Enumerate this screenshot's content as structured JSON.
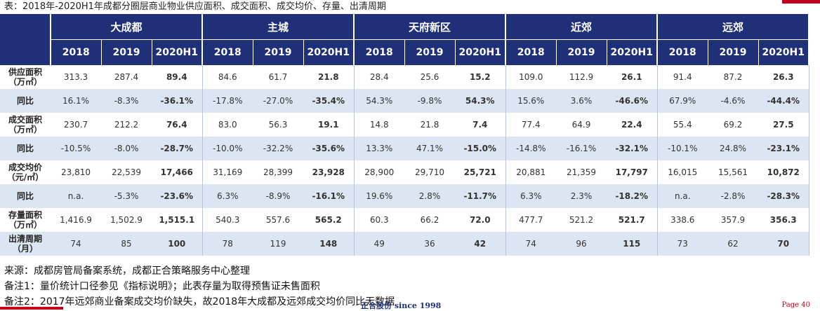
{
  "caption": "表：2018年-2020H1年成都分圈层商业物业供应面积、成交面积、成交均价、存量、出清周期",
  "regions": [
    "大成都",
    "主城",
    "天府新区",
    "近郊",
    "远郊"
  ],
  "years": [
    "2018",
    "2019",
    "2020H1"
  ],
  "rows": [
    {
      "label": "供应面积\n（万㎡）",
      "shade": false,
      "cells": [
        {
          "v": "313.3"
        },
        {
          "v": "287.4"
        },
        {
          "v": "89.4",
          "s": "b"
        },
        {
          "v": "84.6"
        },
        {
          "v": "61.7"
        },
        {
          "v": "21.8",
          "s": "b"
        },
        {
          "v": "28.4"
        },
        {
          "v": "25.6"
        },
        {
          "v": "15.2",
          "s": "b"
        },
        {
          "v": "109.0"
        },
        {
          "v": "112.9"
        },
        {
          "v": "26.1",
          "s": "b"
        },
        {
          "v": "91.4"
        },
        {
          "v": "87.2"
        },
        {
          "v": "26.3",
          "s": "b"
        }
      ]
    },
    {
      "label": "同比",
      "shade": true,
      "cells": [
        {
          "v": "16.1%"
        },
        {
          "v": "-8.3%"
        },
        {
          "v": "-36.1%",
          "s": "neg"
        },
        {
          "v": "-17.8%"
        },
        {
          "v": "-27.0%"
        },
        {
          "v": "-35.4%",
          "s": "neg"
        },
        {
          "v": "54.3%"
        },
        {
          "v": "-9.8%"
        },
        {
          "v": "54.3%",
          "s": "pos"
        },
        {
          "v": "15.6%"
        },
        {
          "v": "3.6%"
        },
        {
          "v": "-46.6%",
          "s": "neg"
        },
        {
          "v": "67.9%"
        },
        {
          "v": "-4.6%"
        },
        {
          "v": "-44.4%",
          "s": "neg"
        }
      ]
    },
    {
      "label": "成交面积\n（万㎡）",
      "shade": false,
      "cells": [
        {
          "v": "230.7"
        },
        {
          "v": "212.2"
        },
        {
          "v": "76.4",
          "s": "b"
        },
        {
          "v": "83.0"
        },
        {
          "v": "56.3"
        },
        {
          "v": "19.1",
          "s": "b"
        },
        {
          "v": "14.8"
        },
        {
          "v": "21.8"
        },
        {
          "v": "7.4",
          "s": "b"
        },
        {
          "v": "77.4"
        },
        {
          "v": "64.9"
        },
        {
          "v": "22.4",
          "s": "b"
        },
        {
          "v": "55.4"
        },
        {
          "v": "69.2"
        },
        {
          "v": "27.5",
          "s": "b"
        }
      ]
    },
    {
      "label": "同比",
      "shade": true,
      "cells": [
        {
          "v": "-10.5%"
        },
        {
          "v": "-8.0%"
        },
        {
          "v": "-28.7%",
          "s": "neg"
        },
        {
          "v": "-10.0%"
        },
        {
          "v": "-32.2%"
        },
        {
          "v": "-35.6%",
          "s": "neg"
        },
        {
          "v": "13.3%"
        },
        {
          "v": "47.1%"
        },
        {
          "v": "-15.0%",
          "s": "neg"
        },
        {
          "v": "-14.8%"
        },
        {
          "v": "-16.1%"
        },
        {
          "v": "-32.1%",
          "s": "neg"
        },
        {
          "v": "-10.1%"
        },
        {
          "v": "24.8%"
        },
        {
          "v": "-23.1%",
          "s": "neg"
        }
      ]
    },
    {
      "label": "成交均价\n（元/㎡）",
      "shade": false,
      "cells": [
        {
          "v": "23,810"
        },
        {
          "v": "22,539"
        },
        {
          "v": "17,466",
          "s": "b"
        },
        {
          "v": "31,169"
        },
        {
          "v": "28,399"
        },
        {
          "v": "23,928",
          "s": "b"
        },
        {
          "v": "28,900"
        },
        {
          "v": "29,710"
        },
        {
          "v": "25,721",
          "s": "b"
        },
        {
          "v": "20,881"
        },
        {
          "v": "21,359"
        },
        {
          "v": "17,797",
          "s": "b"
        },
        {
          "v": "16,015"
        },
        {
          "v": "15,561"
        },
        {
          "v": "10,872",
          "s": "b"
        }
      ]
    },
    {
      "label": "同比",
      "shade": true,
      "cells": [
        {
          "v": "n.a."
        },
        {
          "v": "-5.3%"
        },
        {
          "v": "-23.6%",
          "s": "neg"
        },
        {
          "v": "6.3%"
        },
        {
          "v": "-8.9%"
        },
        {
          "v": "-16.1%",
          "s": "neg"
        },
        {
          "v": "19.6%"
        },
        {
          "v": "2.8%"
        },
        {
          "v": "-11.7%",
          "s": "neg"
        },
        {
          "v": "6.3%"
        },
        {
          "v": "2.3%"
        },
        {
          "v": "-18.2%",
          "s": "neg"
        },
        {
          "v": "n.a."
        },
        {
          "v": "-2.8%"
        },
        {
          "v": "-28.3%",
          "s": "neg"
        }
      ]
    },
    {
      "label": "存量面积\n（万㎡）",
      "shade": false,
      "cells": [
        {
          "v": "1,416.9"
        },
        {
          "v": "1,502.9"
        },
        {
          "v": "1,515.1",
          "s": "b"
        },
        {
          "v": "540.3"
        },
        {
          "v": "557.6"
        },
        {
          "v": "565.2",
          "s": "b"
        },
        {
          "v": "60.3"
        },
        {
          "v": "66.2"
        },
        {
          "v": "72.0",
          "s": "b"
        },
        {
          "v": "477.7"
        },
        {
          "v": "521.2"
        },
        {
          "v": "521.7",
          "s": "b"
        },
        {
          "v": "338.6"
        },
        {
          "v": "357.9"
        },
        {
          "v": "356.3",
          "s": "b"
        }
      ]
    },
    {
      "label": "出清周期\n（月）",
      "shade": true,
      "cells": [
        {
          "v": "74"
        },
        {
          "v": "85"
        },
        {
          "v": "100",
          "s": "red"
        },
        {
          "v": "78"
        },
        {
          "v": "119"
        },
        {
          "v": "148",
          "s": "red"
        },
        {
          "v": "49"
        },
        {
          "v": "36"
        },
        {
          "v": "42",
          "s": "red"
        },
        {
          "v": "74"
        },
        {
          "v": "96"
        },
        {
          "v": "115",
          "s": "red"
        },
        {
          "v": "73"
        },
        {
          "v": "62"
        },
        {
          "v": "70",
          "s": "red"
        }
      ]
    }
  ],
  "notes": [
    "来源：成都房管局备案系统，成都正合策略服务中心整理",
    "备注1：量价统计口径参见《指标说明》；此表存量为取得预售证未售面积",
    "备注2：2017年远郊商业备案成交均价缺失，故2018年大成都及远郊成交均价同比无数据"
  ],
  "footer": {
    "logo_text": "正合股份 since 1998",
    "page": "Page 40"
  },
  "colors": {
    "header_bg": "#1f3078",
    "shade_bg": "#dce6f2",
    "negative": "#2ea44f",
    "highlight": "#d01e2e"
  }
}
